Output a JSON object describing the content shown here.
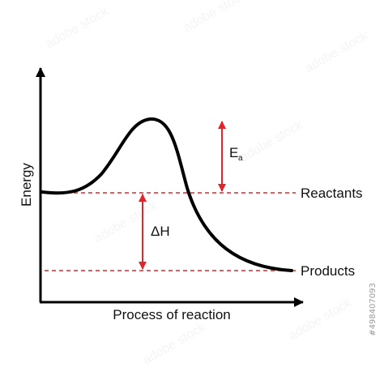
{
  "diagram": {
    "y_axis_label": "Energy",
    "x_axis_label": "Process of reaction",
    "reactants_label": "Reactants",
    "products_label": "Products",
    "activation_energy_label": "E",
    "activation_energy_subscript": "a",
    "enthalpy_change_label": "ΔH",
    "image_id": "#498407093",
    "watermark_text": "adobe stock",
    "colors": {
      "curve": "#000000",
      "axes": "#000000",
      "dashed_lines": "#e0262a",
      "arrows": "#e0262a",
      "text": "#111111"
    }
  }
}
